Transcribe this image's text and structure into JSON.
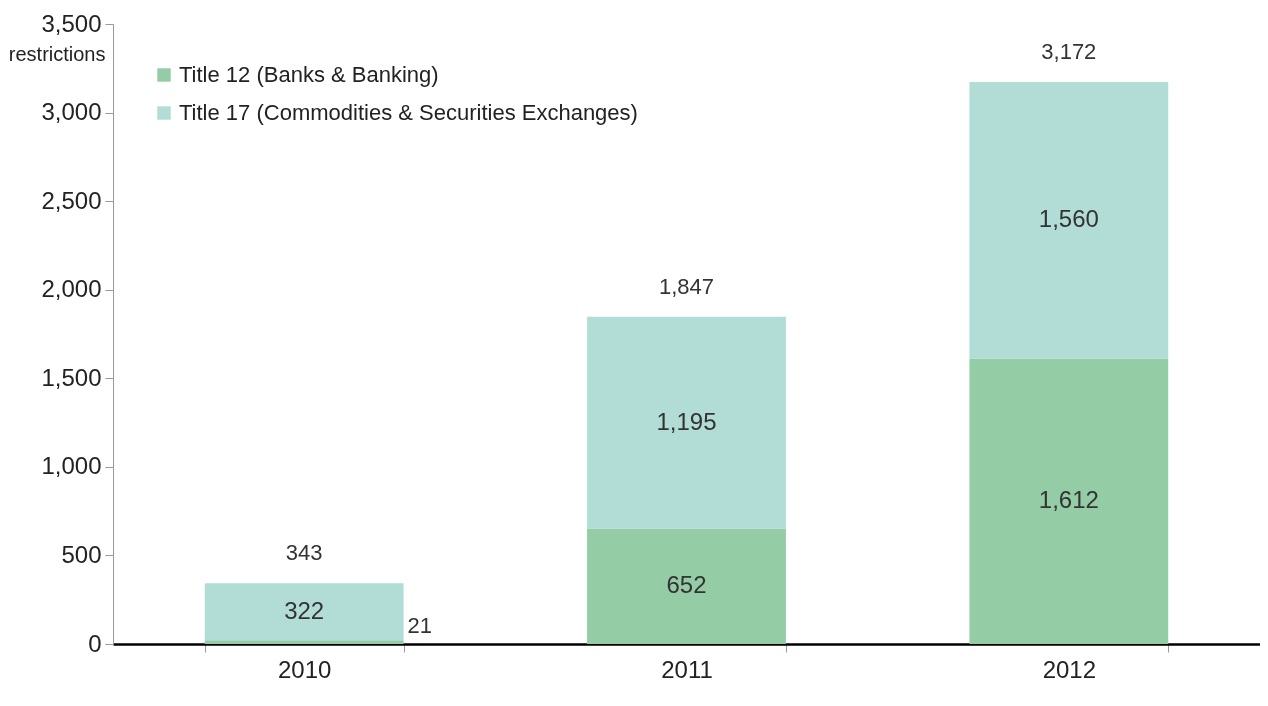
{
  "chart_data": {
    "type": "bar",
    "stacked": true,
    "ylabel": "restrictions",
    "categories": [
      "2010",
      "2011",
      "2012"
    ],
    "series": [
      {
        "name": "Title 12 (Banks & Banking)",
        "color": "#93cca5",
        "values": [
          21,
          652,
          1612
        ],
        "value_labels": [
          "21",
          "652",
          "1,612"
        ]
      },
      {
        "name": "Title 17 (Commodities & Securities Exchanges)",
        "color": "#b2dcd6",
        "values": [
          322,
          1195,
          1560
        ],
        "value_labels": [
          "322",
          "1,195",
          "1,560"
        ]
      }
    ],
    "totals": [
      "343",
      "1,847",
      "3,172"
    ],
    "ylim": [
      0,
      3500
    ],
    "yticks": [
      0,
      500,
      {
        "value": 1000,
        "label": "1,000"
      },
      {
        "value": 1500,
        "label": "1,500"
      },
      {
        "value": 2000,
        "label": "2,000"
      },
      {
        "value": 2500,
        "label": "2,500"
      },
      {
        "value": 3000,
        "label": "3,000"
      },
      {
        "value": 3500,
        "label": "3,500"
      }
    ],
    "legend": "top left",
    "grid": false
  }
}
